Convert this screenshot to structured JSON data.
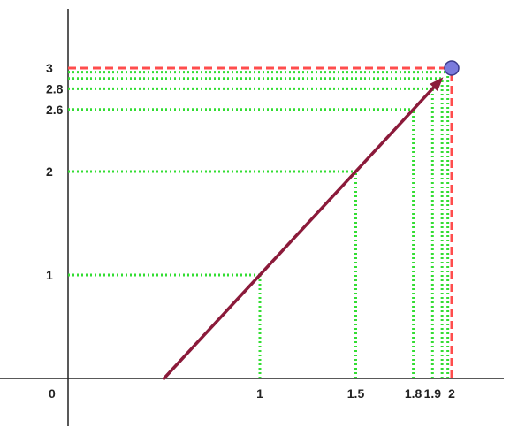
{
  "colors": {
    "axis": "#222222",
    "limit_guide": "#ff4d4d",
    "approach_guide": "#33dd33",
    "arrow": "#8b1a3a",
    "target_point": "#7b7bdc",
    "target_point_stroke": "#3a3a8a"
  },
  "origin_label": "0",
  "x_ticks": [
    {
      "value": 1,
      "label": "1"
    },
    {
      "value": 1.5,
      "label": "1.5"
    },
    {
      "value": 1.8,
      "label": "1.8"
    },
    {
      "value": 1.9,
      "label": "1.9"
    },
    {
      "value": 2,
      "label": "2"
    }
  ],
  "y_ticks": [
    {
      "value": 1,
      "label": "1"
    },
    {
      "value": 2,
      "label": "2"
    },
    {
      "value": 2.6,
      "label": "2.6"
    },
    {
      "value": 2.8,
      "label": "2.8"
    },
    {
      "value": 3,
      "label": "3"
    }
  ],
  "approach_points": [
    {
      "x": 1,
      "y": 1
    },
    {
      "x": 1.5,
      "y": 2
    },
    {
      "x": 1.8,
      "y": 2.6
    },
    {
      "x": 1.9,
      "y": 2.8
    },
    {
      "x": 1.95,
      "y": 2.9
    },
    {
      "x": 1.98,
      "y": 2.96
    }
  ],
  "limit_point": {
    "x": 2,
    "y": 3
  },
  "arrow_start": {
    "x": 0.5,
    "y": 0
  }
}
